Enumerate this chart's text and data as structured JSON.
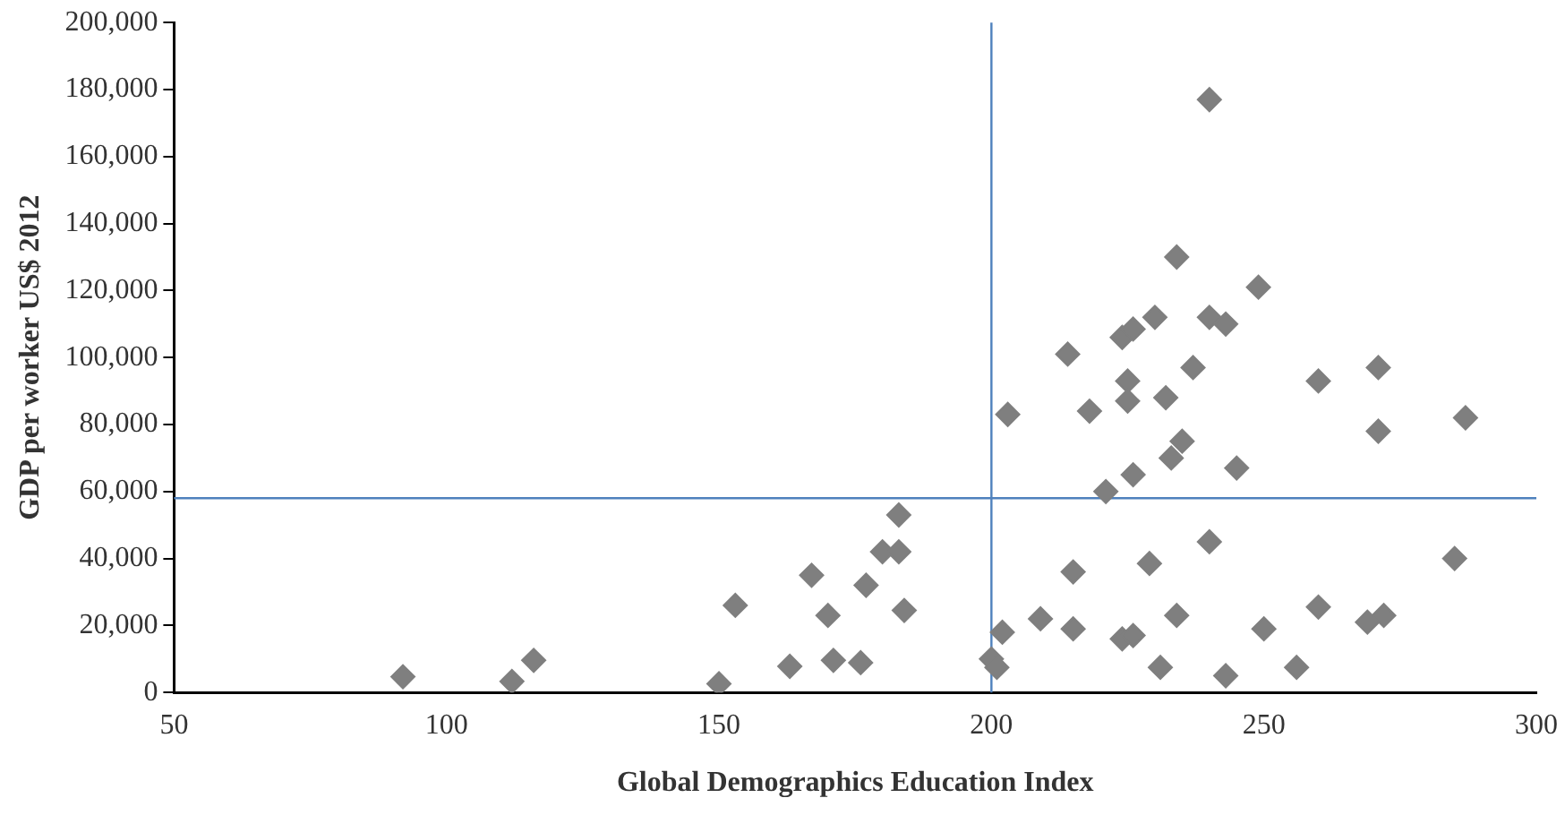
{
  "chart_data": {
    "type": "scatter",
    "xlabel": "Global Demographics Education Index",
    "ylabel": "GDP per worker US$ 2012",
    "xlim": [
      50,
      300
    ],
    "xticks": [
      50,
      100,
      150,
      200,
      250,
      300
    ],
    "ylim": [
      0,
      200000
    ],
    "yticks": [
      {
        "value": 0,
        "label": "0"
      },
      {
        "value": 20000,
        "label": "20,000"
      },
      {
        "value": 40000,
        "label": "40,000"
      },
      {
        "value": 60000,
        "label": "60,000"
      },
      {
        "value": 80000,
        "label": "80,000"
      },
      {
        "value": 100000,
        "label": "100,000"
      },
      {
        "value": 120000,
        "label": "120,000"
      },
      {
        "value": 140000,
        "label": "140,000"
      },
      {
        "value": 160000,
        "label": "160,000"
      },
      {
        "value": 180000,
        "label": "180,000"
      },
      {
        "value": 200000,
        "label": "200,000"
      }
    ],
    "grid": false,
    "legend": false,
    "marker": "diamond",
    "ref_lines": [
      {
        "axis": "x",
        "value": 200,
        "color": "#4f81bd"
      },
      {
        "axis": "y",
        "value": 58000,
        "color": "#4f81bd"
      }
    ],
    "series": [
      {
        "color": "#7f7f7f",
        "x": [
          92,
          112,
          116,
          150,
          153,
          163,
          167,
          170,
          171,
          176,
          177,
          180,
          183,
          183,
          184,
          200,
          201,
          202,
          209,
          215,
          215,
          224,
          226,
          229,
          231,
          234,
          240,
          243,
          250,
          256,
          260,
          269,
          272,
          285,
          221,
          226,
          233,
          245,
          240,
          234,
          249,
          230,
          224,
          226,
          240,
          243,
          214,
          225,
          237,
          260,
          271,
          203,
          218,
          225,
          232,
          271,
          287,
          235
        ],
        "values": [
          4700,
          3300,
          9600,
          2600,
          26000,
          7800,
          35000,
          23000,
          9600,
          8900,
          32000,
          42000,
          53000,
          42000,
          24500,
          10000,
          7500,
          18000,
          22000,
          36000,
          19000,
          16000,
          17000,
          38500,
          7500,
          23000,
          45000,
          5000,
          19000,
          7500,
          25500,
          21000,
          23000,
          40000,
          60000,
          65000,
          70000,
          67000,
          177000,
          130000,
          121000,
          112000,
          106000,
          108500,
          112000,
          110000,
          101000,
          93000,
          97000,
          93000,
          97000,
          83000,
          84000,
          87000,
          88000,
          78000,
          82000,
          75000
        ]
      }
    ]
  }
}
